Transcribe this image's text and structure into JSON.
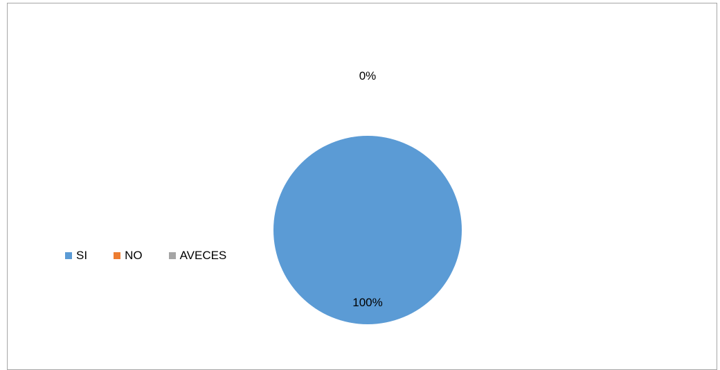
{
  "chart_data": {
    "type": "pie",
    "title": "",
    "categories": [
      "SI",
      "NO",
      "AVECES"
    ],
    "values": [
      100,
      0,
      0
    ],
    "data_labels": [
      "100%",
      "0%",
      ""
    ],
    "colors": [
      "#5b9bd5",
      "#ed7d31",
      "#a5a5a5"
    ],
    "legend_position": "left"
  }
}
